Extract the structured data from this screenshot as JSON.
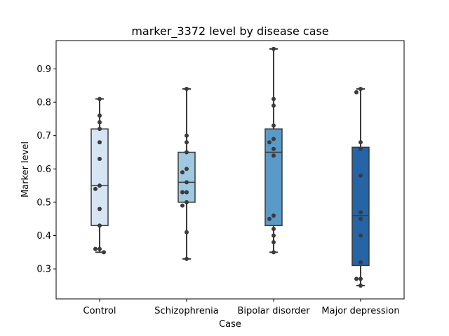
{
  "chart_data": {
    "type": "box",
    "title": "marker_3372 level by disease case",
    "xlabel": "Case",
    "ylabel": "Marker level",
    "ylim": [
      0.21,
      0.985
    ],
    "yticks": [
      0.3,
      0.4,
      0.5,
      0.6,
      0.7,
      0.8,
      0.9
    ],
    "ytick_labels": [
      "0.3",
      "0.4",
      "0.5",
      "0.6",
      "0.7",
      "0.8",
      "0.9"
    ],
    "grid": false,
    "categories": [
      "Control",
      "Schizophrenia",
      "Bipolar disorder",
      "Major depression"
    ],
    "colors": [
      "#d6e5f3",
      "#9ec9e0",
      "#5a9ac8",
      "#2564a6"
    ],
    "boxes": [
      {
        "min": 0.35,
        "q1": 0.43,
        "median": 0.55,
        "q3": 0.72,
        "max": 0.81
      },
      {
        "min": 0.33,
        "q1": 0.5,
        "median": 0.56,
        "q3": 0.65,
        "max": 0.84
      },
      {
        "min": 0.35,
        "q1": 0.43,
        "median": 0.65,
        "q3": 0.72,
        "max": 0.96
      },
      {
        "min": 0.25,
        "q1": 0.31,
        "median": 0.46,
        "q3": 0.665,
        "max": 0.84
      }
    ],
    "points": [
      [
        0.81,
        0.76,
        0.74,
        0.72,
        0.68,
        0.63,
        0.55,
        0.54,
        0.48,
        0.43,
        0.36,
        0.36,
        0.35
      ],
      [
        0.84,
        0.7,
        0.68,
        0.65,
        0.6,
        0.59,
        0.56,
        0.53,
        0.53,
        0.5,
        0.49,
        0.41,
        0.33
      ],
      [
        0.96,
        0.81,
        0.79,
        0.73,
        0.69,
        0.68,
        0.66,
        0.64,
        0.46,
        0.45,
        0.42,
        0.4,
        0.38,
        0.35
      ],
      [
        0.84,
        0.83,
        0.68,
        0.66,
        0.58,
        0.47,
        0.45,
        0.4,
        0.32,
        0.27,
        0.27,
        0.25
      ]
    ]
  }
}
